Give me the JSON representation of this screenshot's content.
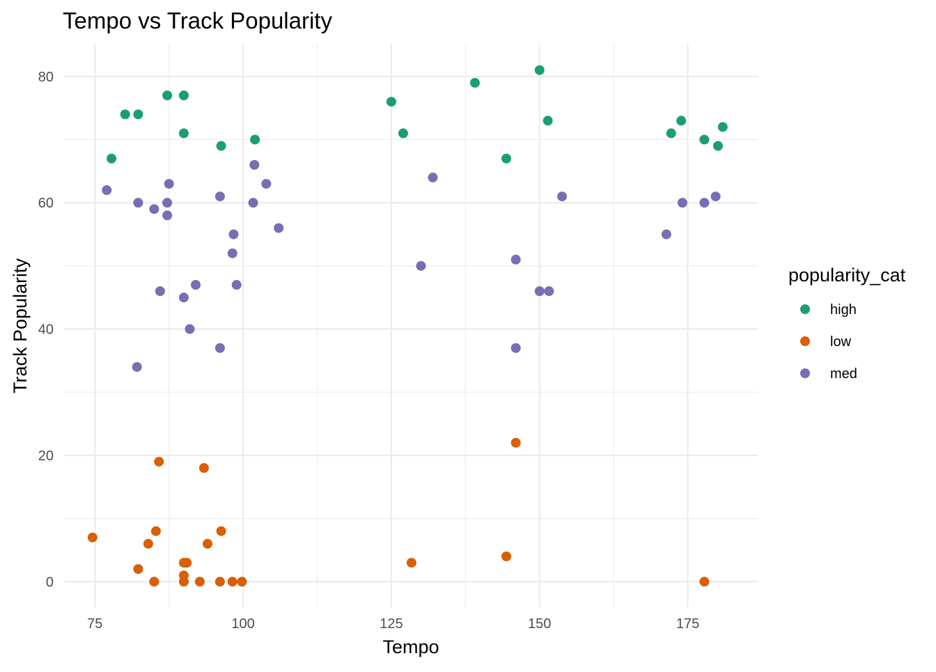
{
  "chart_data": {
    "type": "scatter",
    "title": "Tempo vs Track Popularity",
    "xlabel": "Tempo",
    "ylabel": "Track Popularity",
    "xlim": [
      69.8,
      186.8
    ],
    "ylim": [
      -4.05,
      85.05
    ],
    "x_ticks": [
      75,
      100,
      125,
      150,
      175
    ],
    "x_minor_ticks": [
      87.5,
      112.5,
      137.5,
      162.5
    ],
    "y_ticks": [
      0,
      20,
      40,
      60,
      80
    ],
    "y_minor_ticks": [
      10,
      30,
      50,
      70
    ],
    "grid": true,
    "legend": {
      "title": "popularity_cat",
      "position": "right"
    },
    "series": [
      {
        "name": "high",
        "color": "#1b9e77",
        "points": [
          [
            77.8,
            67
          ],
          [
            80.1,
            74
          ],
          [
            82.3,
            74
          ],
          [
            87.2,
            77
          ],
          [
            90.0,
            77
          ],
          [
            90.0,
            71
          ],
          [
            96.3,
            69
          ],
          [
            102.0,
            70
          ],
          [
            125.0,
            76
          ],
          [
            127.0,
            71
          ],
          [
            139.1,
            79
          ],
          [
            144.4,
            67
          ],
          [
            150.0,
            81
          ],
          [
            151.4,
            73
          ],
          [
            172.2,
            71
          ],
          [
            173.9,
            73
          ],
          [
            177.8,
            70
          ],
          [
            180.1,
            69
          ],
          [
            180.9,
            72
          ]
        ]
      },
      {
        "name": "low",
        "color": "#d95f02",
        "points": [
          [
            74.6,
            7
          ],
          [
            82.3,
            2
          ],
          [
            84.0,
            6
          ],
          [
            85.0,
            0
          ],
          [
            85.3,
            8
          ],
          [
            85.8,
            19
          ],
          [
            90.0,
            3
          ],
          [
            90.0,
            1
          ],
          [
            90.0,
            0
          ],
          [
            90.5,
            3
          ],
          [
            92.7,
            0
          ],
          [
            93.4,
            18
          ],
          [
            94.0,
            6
          ],
          [
            96.1,
            0
          ],
          [
            96.3,
            8
          ],
          [
            98.2,
            0
          ],
          [
            99.8,
            0
          ],
          [
            128.4,
            3
          ],
          [
            144.4,
            4
          ],
          [
            146.0,
            22
          ],
          [
            177.8,
            0
          ]
        ]
      },
      {
        "name": "med",
        "color": "#7570b3",
        "points": [
          [
            77.0,
            62
          ],
          [
            82.1,
            34
          ],
          [
            82.3,
            60
          ],
          [
            85.0,
            59
          ],
          [
            86.0,
            46
          ],
          [
            87.2,
            60
          ],
          [
            87.2,
            58
          ],
          [
            87.5,
            63
          ],
          [
            90.0,
            45
          ],
          [
            91.0,
            40
          ],
          [
            92.0,
            47
          ],
          [
            96.1,
            37
          ],
          [
            96.1,
            61
          ],
          [
            98.2,
            52
          ],
          [
            98.4,
            55
          ],
          [
            98.9,
            47
          ],
          [
            101.7,
            60
          ],
          [
            101.9,
            66
          ],
          [
            103.9,
            63
          ],
          [
            106.0,
            56
          ],
          [
            130.0,
            50
          ],
          [
            132.0,
            64
          ],
          [
            146.0,
            51
          ],
          [
            146.0,
            37
          ],
          [
            150.0,
            46
          ],
          [
            151.6,
            46
          ],
          [
            153.8,
            61
          ],
          [
            171.4,
            55
          ],
          [
            174.1,
            60
          ],
          [
            177.8,
            60
          ],
          [
            179.7,
            61
          ]
        ]
      }
    ]
  }
}
